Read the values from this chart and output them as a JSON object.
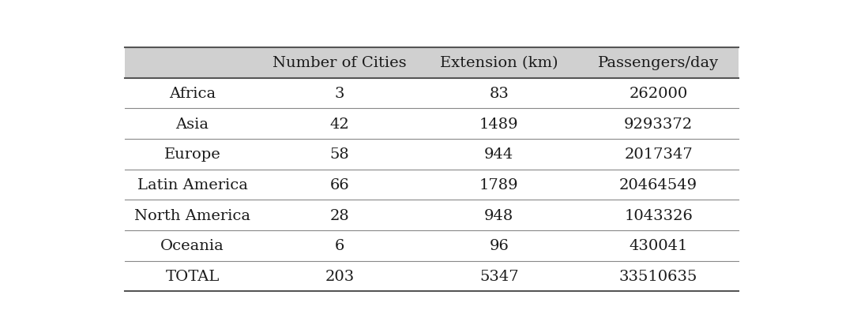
{
  "columns": [
    "",
    "Number of Cities",
    "Extension (km)",
    "Passengers/day"
  ],
  "rows": [
    [
      "Africa",
      "3",
      "83",
      "262000"
    ],
    [
      "Asia",
      "42",
      "1489",
      "9293372"
    ],
    [
      "Europe",
      "58",
      "944",
      "2017347"
    ],
    [
      "Latin America",
      "66",
      "1789",
      "20464549"
    ],
    [
      "North America",
      "28",
      "948",
      "1043326"
    ],
    [
      "Oceania",
      "6",
      "96",
      "430041"
    ],
    [
      "TOTAL",
      "203",
      "5347",
      "33510635"
    ]
  ],
  "header_bg": "#d0d0d0",
  "row_bg": "#ffffff",
  "text_color": "#1a1a1a",
  "header_text_color": "#1a1a1a",
  "font_size": 14,
  "header_font_size": 14,
  "fig_bg": "#ffffff",
  "outer_bg": "#ffffff",
  "line_color": "#888888",
  "thick_line_color": "#555555",
  "figsize": [
    10.66,
    4.27
  ],
  "dpi": 100
}
